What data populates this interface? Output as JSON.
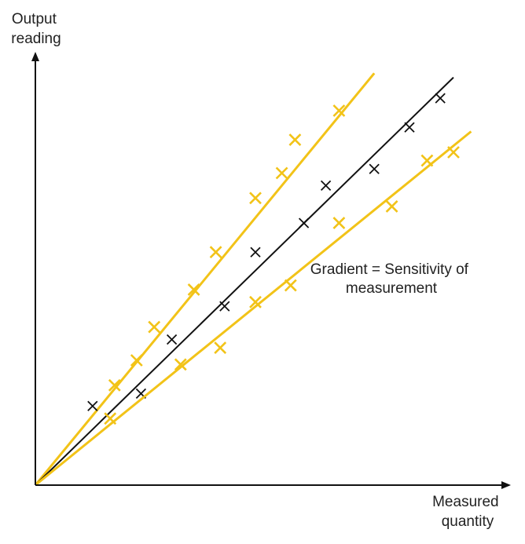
{
  "chart_data": {
    "type": "scatter",
    "title": "",
    "ylabel_lines": [
      "Output",
      "reading"
    ],
    "xlabel_lines": [
      "Measured",
      "quantity"
    ],
    "annotation_lines": [
      "Gradient = Sensitivity of",
      "measurement"
    ],
    "xlim": [
      0,
      100
    ],
    "ylim": [
      0,
      100
    ],
    "series": [
      {
        "color": "#f2c318",
        "line": {
          "x0": 0,
          "y0": 0,
          "x1": 77,
          "y1": 99
        },
        "points": [
          {
            "x": 18,
            "y": 24
          },
          {
            "x": 23,
            "y": 30
          },
          {
            "x": 27,
            "y": 38
          },
          {
            "x": 36,
            "y": 47
          },
          {
            "x": 41,
            "y": 56
          },
          {
            "x": 50,
            "y": 69
          },
          {
            "x": 56,
            "y": 75
          },
          {
            "x": 59,
            "y": 83
          },
          {
            "x": 69,
            "y": 90
          }
        ]
      },
      {
        "color": "#111111",
        "line": {
          "x0": 0,
          "y0": 0,
          "x1": 95,
          "y1": 98
        },
        "points": [
          {
            "x": 13,
            "y": 19
          },
          {
            "x": 24,
            "y": 22
          },
          {
            "x": 31,
            "y": 35
          },
          {
            "x": 43,
            "y": 43
          },
          {
            "x": 50,
            "y": 56
          },
          {
            "x": 61,
            "y": 63
          },
          {
            "x": 66,
            "y": 72
          },
          {
            "x": 77,
            "y": 76
          },
          {
            "x": 85,
            "y": 86
          },
          {
            "x": 92,
            "y": 93
          }
        ]
      },
      {
        "color": "#f2c318",
        "line": {
          "x0": 0,
          "y0": 0,
          "x1": 99,
          "y1": 85
        },
        "points": [
          {
            "x": 17,
            "y": 16
          },
          {
            "x": 33,
            "y": 29
          },
          {
            "x": 42,
            "y": 33
          },
          {
            "x": 50,
            "y": 44
          },
          {
            "x": 58,
            "y": 48
          },
          {
            "x": 69,
            "y": 63
          },
          {
            "x": 81,
            "y": 67
          },
          {
            "x": 89,
            "y": 78
          },
          {
            "x": 95,
            "y": 80
          }
        ]
      }
    ]
  }
}
